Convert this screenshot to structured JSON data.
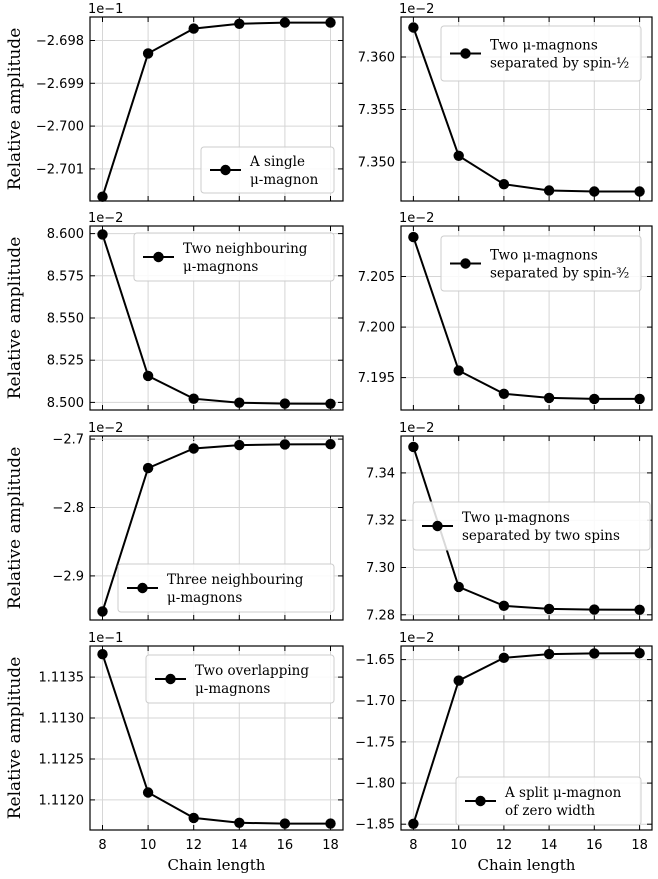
{
  "chart_data": [
    {
      "type": "line",
      "title": "",
      "xlabel": "",
      "ylabel": "Relative amplitude",
      "offset_label": "1e−1",
      "legend": [
        "A single",
        "μ-magnon"
      ],
      "legend_loc": "lower-right",
      "x": [
        8,
        10,
        12,
        14,
        16,
        18
      ],
      "values": [
        -2.70165,
        -2.6983,
        -2.69772,
        -2.69761,
        -2.69758,
        -2.69758
      ],
      "ylim": [
        -2.70175,
        -2.69745
      ],
      "yticks": [
        -2.698,
        -2.699,
        -2.7,
        -2.701
      ],
      "ytick_labels": [
        "−2.698",
        "−2.699",
        "−2.700",
        "−2.701"
      ]
    },
    {
      "type": "line",
      "title": "",
      "xlabel": "",
      "ylabel": "",
      "offset_label": "1e−2",
      "legend": [
        "Two μ-magnons",
        "separated by spin-½"
      ],
      "legend_loc": "upper-right",
      "x": [
        8,
        10,
        12,
        14,
        16,
        18
      ],
      "values": [
        7.3628,
        7.3506,
        7.3479,
        7.3473,
        7.3472,
        7.3472
      ],
      "ylim": [
        7.3463,
        7.3638
      ],
      "yticks": [
        7.36,
        7.355,
        7.35
      ],
      "ytick_labels": [
        "7.360",
        "7.355",
        "7.350"
      ]
    },
    {
      "type": "line",
      "title": "",
      "xlabel": "",
      "ylabel": "Relative amplitude",
      "offset_label": "1e−2",
      "legend": [
        "Two neighbouring",
        "μ-magnons"
      ],
      "legend_loc": "upper-right",
      "x": [
        8,
        10,
        12,
        14,
        16,
        18
      ],
      "values": [
        8.5995,
        8.5157,
        8.5022,
        8.4998,
        8.4993,
        8.4992
      ],
      "ylim": [
        8.4955,
        8.6045
      ],
      "yticks": [
        8.6,
        8.575,
        8.55,
        8.525,
        8.5
      ],
      "ytick_labels": [
        "8.600",
        "8.575",
        "8.550",
        "8.525",
        "8.500"
      ]
    },
    {
      "type": "line",
      "title": "",
      "xlabel": "",
      "ylabel": "",
      "offset_label": "1e−2",
      "legend": [
        "Two μ-magnons",
        "separated by spin-³⁄₂"
      ],
      "legend_loc": "upper-right",
      "x": [
        8,
        10,
        12,
        14,
        16,
        18
      ],
      "values": [
        7.2089,
        7.1957,
        7.1934,
        7.193,
        7.1929,
        7.1929
      ],
      "ylim": [
        7.1918,
        7.21
      ],
      "yticks": [
        7.205,
        7.2,
        7.195
      ],
      "ytick_labels": [
        "7.205",
        "7.200",
        "7.195"
      ]
    },
    {
      "type": "line",
      "title": "",
      "xlabel": "",
      "ylabel": "Relative amplitude",
      "offset_label": "1e−2",
      "legend": [
        "Three neighbouring",
        "μ-magnons"
      ],
      "legend_loc": "lower-right",
      "x": [
        8,
        10,
        12,
        14,
        16,
        18
      ],
      "values": [
        -2.952,
        -2.7425,
        -2.7138,
        -2.7088,
        -2.7078,
        -2.7075
      ],
      "ylim": [
        -2.9645,
        -2.6955
      ],
      "yticks": [
        -2.7,
        -2.8,
        -2.9
      ],
      "ytick_labels": [
        "−2.7",
        "−2.8",
        "−2.9"
      ]
    },
    {
      "type": "line",
      "title": "",
      "xlabel": "",
      "ylabel": "",
      "offset_label": "1e−2",
      "legend": [
        "Two μ-magnons",
        "separated by two spins"
      ],
      "legend_loc": "center-right",
      "x": [
        8,
        10,
        12,
        14,
        16,
        18
      ],
      "values": [
        7.351,
        7.2918,
        7.2838,
        7.2825,
        7.2822,
        7.2821
      ],
      "ylim": [
        7.2778,
        7.3556
      ],
      "yticks": [
        7.34,
        7.32,
        7.3,
        7.28
      ],
      "ytick_labels": [
        "7.34",
        "7.32",
        "7.30",
        "7.28"
      ]
    },
    {
      "type": "line",
      "title": "",
      "xlabel": "Chain length",
      "ylabel": "Relative amplitude",
      "offset_label": "1e−1",
      "legend": [
        "Two overlapping",
        "μ-magnons"
      ],
      "legend_loc": "upper-right",
      "x": [
        8,
        10,
        12,
        14,
        16,
        18
      ],
      "values": [
        1.11378,
        1.11209,
        1.11178,
        1.11172,
        1.11171,
        1.11171
      ],
      "ylim": [
        1.111632,
        1.11388
      ],
      "yticks": [
        1.1135,
        1.113,
        1.1125,
        1.112
      ],
      "ytick_labels": [
        "1.1135",
        "1.1130",
        "1.1125",
        "1.1120"
      ],
      "xticks": [
        8,
        10,
        12,
        14,
        16,
        18
      ],
      "xtick_labels": [
        "8",
        "10",
        "12",
        "14",
        "16",
        "18"
      ]
    },
    {
      "type": "line",
      "title": "",
      "xlabel": "Chain length",
      "ylabel": "",
      "offset_label": "1e−2",
      "legend": [
        "A split μ-magnon",
        "of zero width"
      ],
      "legend_loc": "lower-right",
      "x": [
        8,
        10,
        12,
        14,
        16,
        18
      ],
      "values": [
        -1.8495,
        -1.6755,
        -1.6478,
        -1.6433,
        -1.6425,
        -1.6423
      ],
      "ylim": [
        -1.857,
        -1.6335
      ],
      "yticks": [
        -1.65,
        -1.7,
        -1.75,
        -1.8,
        -1.85
      ],
      "ytick_labels": [
        "−1.65",
        "−1.70",
        "−1.75",
        "−1.80",
        "−1.85"
      ],
      "xticks": [
        8,
        10,
        12,
        14,
        16,
        18
      ],
      "xtick_labels": [
        "8",
        "10",
        "12",
        "14",
        "16",
        "18"
      ]
    }
  ]
}
